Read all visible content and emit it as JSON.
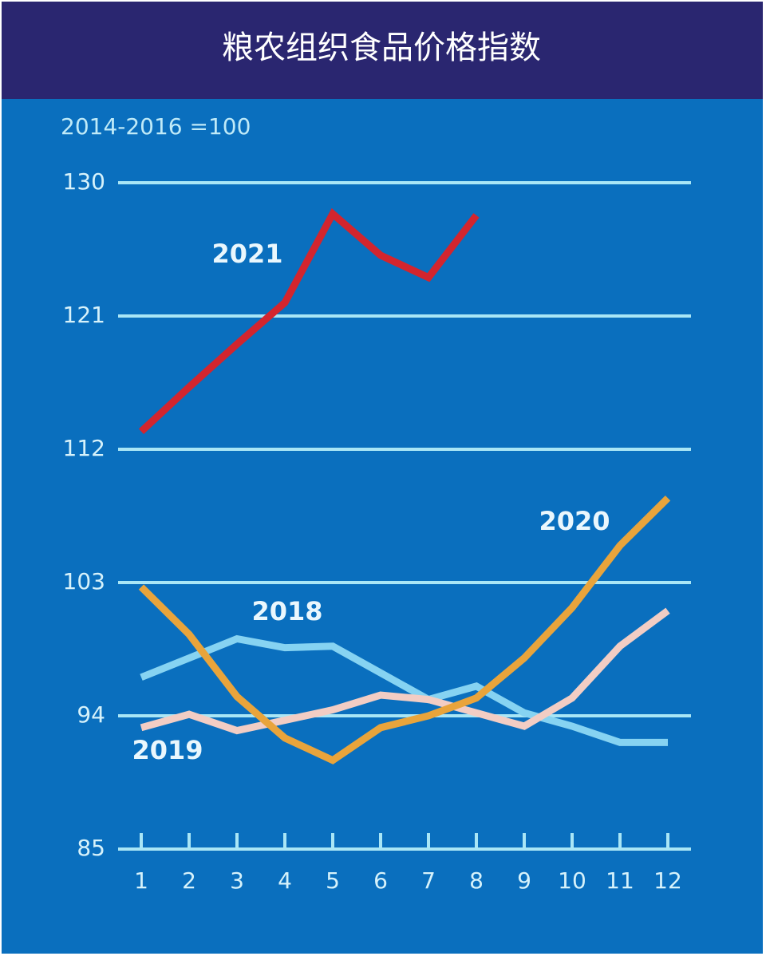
{
  "chart_data": {
    "type": "line",
    "title": "粮农组织食品价格指数",
    "subtitle": "2014-2016 =100",
    "categories": [
      "1",
      "2",
      "3",
      "4",
      "5",
      "6",
      "7",
      "8",
      "9",
      "10",
      "11",
      "12"
    ],
    "ylim": [
      85,
      130
    ],
    "yticks": [
      85,
      94,
      103,
      112,
      121,
      130
    ],
    "grid": true,
    "series": [
      {
        "name": "2018",
        "color": "#86d3f2",
        "values": [
          96.6,
          97.9,
          99.2,
          98.6,
          98.7,
          96.9,
          95.1,
          96.0,
          94.2,
          93.3,
          92.2,
          92.2
        ]
      },
      {
        "name": "2019",
        "color": "#f2cdc4",
        "values": [
          93.2,
          94.1,
          93.0,
          93.7,
          94.4,
          95.4,
          95.1,
          94.2,
          93.3,
          95.2,
          98.7,
          101.1
        ]
      },
      {
        "name": "2020",
        "color": "#e9a43b",
        "values": [
          102.7,
          99.5,
          95.3,
          92.5,
          91.0,
          93.2,
          94.0,
          95.2,
          97.9,
          101.3,
          105.5,
          108.7
        ]
      },
      {
        "name": "2021",
        "color": "#d3252e",
        "values": [
          113.2,
          116.2,
          119.1,
          121.9,
          127.9,
          125.1,
          123.6,
          127.8,
          null,
          null,
          null,
          null
        ]
      }
    ]
  }
}
